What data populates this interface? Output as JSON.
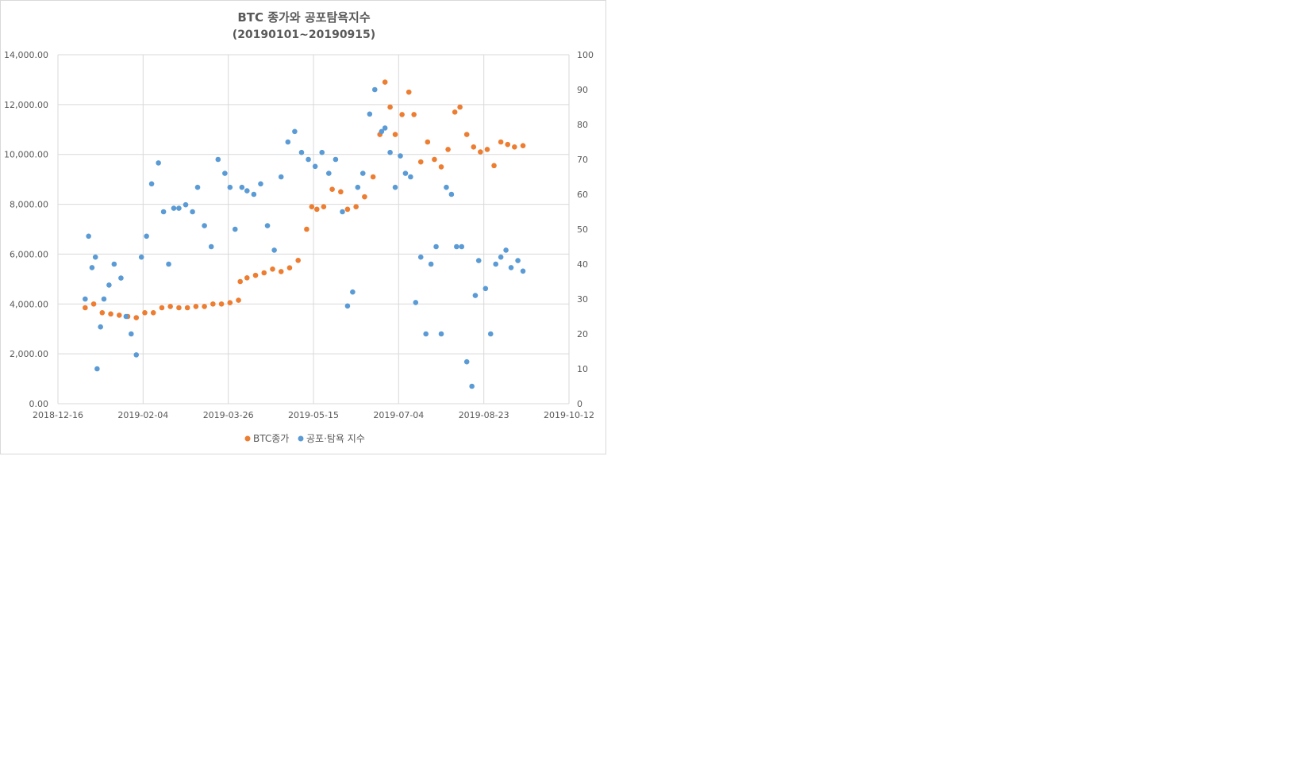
{
  "chart_data": {
    "type": "scatter",
    "title": "BTC 종가와 공포탐욕지수",
    "subtitle": "(20190101~20190915)",
    "xlabel": "",
    "ylabel": "",
    "y2label": "",
    "x_ticks": [
      "2018-12-16",
      "2019-02-04",
      "2019-03-26",
      "2019-05-15",
      "2019-07-04",
      "2019-08-23",
      "2019-10-12"
    ],
    "xlim": [
      "2018-12-16",
      "2019-10-12"
    ],
    "y_ticks": [
      "0.00",
      "2,000.00",
      "4,000.00",
      "6,000.00",
      "8,000.00",
      "10,000.00",
      "12,000.00",
      "14,000.00"
    ],
    "ylim": [
      0,
      14000
    ],
    "y2_ticks": [
      "0",
      "10",
      "20",
      "30",
      "40",
      "50",
      "60",
      "70",
      "80",
      "90",
      "100"
    ],
    "y2lim": [
      0,
      100
    ],
    "grid": true,
    "legend_position": "bottom",
    "series": [
      {
        "name": "BTC종가",
        "axis": "left",
        "color": "#ED7D31",
        "x": [
          "2019-01-01",
          "2019-01-06",
          "2019-01-11",
          "2019-01-16",
          "2019-01-21",
          "2019-01-26",
          "2019-01-31",
          "2019-02-05",
          "2019-02-10",
          "2019-02-15",
          "2019-02-20",
          "2019-02-25",
          "2019-03-02",
          "2019-03-07",
          "2019-03-12",
          "2019-03-17",
          "2019-03-22",
          "2019-03-27",
          "2019-04-01",
          "2019-04-02",
          "2019-04-06",
          "2019-04-11",
          "2019-04-16",
          "2019-04-21",
          "2019-04-26",
          "2019-05-01",
          "2019-05-06",
          "2019-05-11",
          "2019-05-14",
          "2019-05-17",
          "2019-05-21",
          "2019-05-26",
          "2019-05-31",
          "2019-06-04",
          "2019-06-09",
          "2019-06-14",
          "2019-06-19",
          "2019-06-23",
          "2019-06-26",
          "2019-06-29",
          "2019-07-02",
          "2019-07-06",
          "2019-07-10",
          "2019-07-13",
          "2019-07-17",
          "2019-07-21",
          "2019-07-25",
          "2019-07-29",
          "2019-08-02",
          "2019-08-06",
          "2019-08-09",
          "2019-08-13",
          "2019-08-17",
          "2019-08-21",
          "2019-08-25",
          "2019-08-29",
          "2019-09-02",
          "2019-09-06",
          "2019-09-10",
          "2019-09-15"
        ],
        "values": [
          3850,
          4000,
          3650,
          3600,
          3550,
          3500,
          3450,
          3650,
          3650,
          3850,
          3900,
          3850,
          3850,
          3900,
          3900,
          4000,
          4000,
          4050,
          4150,
          4900,
          5050,
          5150,
          5250,
          5400,
          5300,
          5450,
          5750,
          7000,
          7900,
          7800,
          7900,
          8600,
          8500,
          7800,
          7900,
          8300,
          9100,
          10800,
          12900,
          11900,
          10800,
          11600,
          12500,
          11600,
          9700,
          10500,
          9800,
          9500,
          10200,
          11700,
          11900,
          10800,
          10300,
          10100,
          10200,
          9550,
          10500,
          10400,
          10300,
          10350
        ]
      },
      {
        "name": "공포·탐욕 지수",
        "axis": "right",
        "color": "#5B9BD5",
        "x": [
          "2019-01-01",
          "2019-01-03",
          "2019-01-05",
          "2019-01-07",
          "2019-01-08",
          "2019-01-10",
          "2019-01-12",
          "2019-01-15",
          "2019-01-18",
          "2019-01-22",
          "2019-01-25",
          "2019-01-28",
          "2019-01-31",
          "2019-02-03",
          "2019-02-06",
          "2019-02-09",
          "2019-02-13",
          "2019-02-16",
          "2019-02-19",
          "2019-02-22",
          "2019-02-25",
          "2019-03-01",
          "2019-03-05",
          "2019-03-08",
          "2019-03-12",
          "2019-03-16",
          "2019-03-20",
          "2019-03-24",
          "2019-03-27",
          "2019-03-30",
          "2019-04-03",
          "2019-04-06",
          "2019-04-10",
          "2019-04-14",
          "2019-04-18",
          "2019-04-22",
          "2019-04-26",
          "2019-04-30",
          "2019-05-04",
          "2019-05-08",
          "2019-05-12",
          "2019-05-16",
          "2019-05-20",
          "2019-05-24",
          "2019-05-28",
          "2019-06-01",
          "2019-06-04",
          "2019-06-07",
          "2019-06-10",
          "2019-06-13",
          "2019-06-17",
          "2019-06-20",
          "2019-06-24",
          "2019-06-26",
          "2019-06-29",
          "2019-07-02",
          "2019-07-05",
          "2019-07-08",
          "2019-07-11",
          "2019-07-14",
          "2019-07-17",
          "2019-07-20",
          "2019-07-23",
          "2019-07-26",
          "2019-07-29",
          "2019-08-01",
          "2019-08-04",
          "2019-08-07",
          "2019-08-10",
          "2019-08-13",
          "2019-08-16",
          "2019-08-18",
          "2019-08-20",
          "2019-08-24",
          "2019-08-27",
          "2019-08-30",
          "2019-09-02",
          "2019-09-05",
          "2019-09-08",
          "2019-09-12",
          "2019-09-15"
        ],
        "values": [
          30,
          48,
          39,
          42,
          10,
          22,
          30,
          34,
          40,
          36,
          25,
          20,
          14,
          42,
          48,
          63,
          69,
          55,
          40,
          56,
          56,
          57,
          55,
          62,
          51,
          45,
          70,
          66,
          62,
          50,
          62,
          61,
          60,
          63,
          51,
          44,
          65,
          75,
          78,
          72,
          70,
          68,
          72,
          66,
          70,
          55,
          28,
          32,
          62,
          66,
          83,
          90,
          78,
          79,
          72,
          62,
          71,
          66,
          65,
          29,
          42,
          20,
          40,
          45,
          20,
          62,
          60,
          45,
          45,
          12,
          5,
          31,
          41,
          33,
          20,
          40,
          42,
          44,
          39,
          41,
          38
        ]
      }
    ]
  }
}
